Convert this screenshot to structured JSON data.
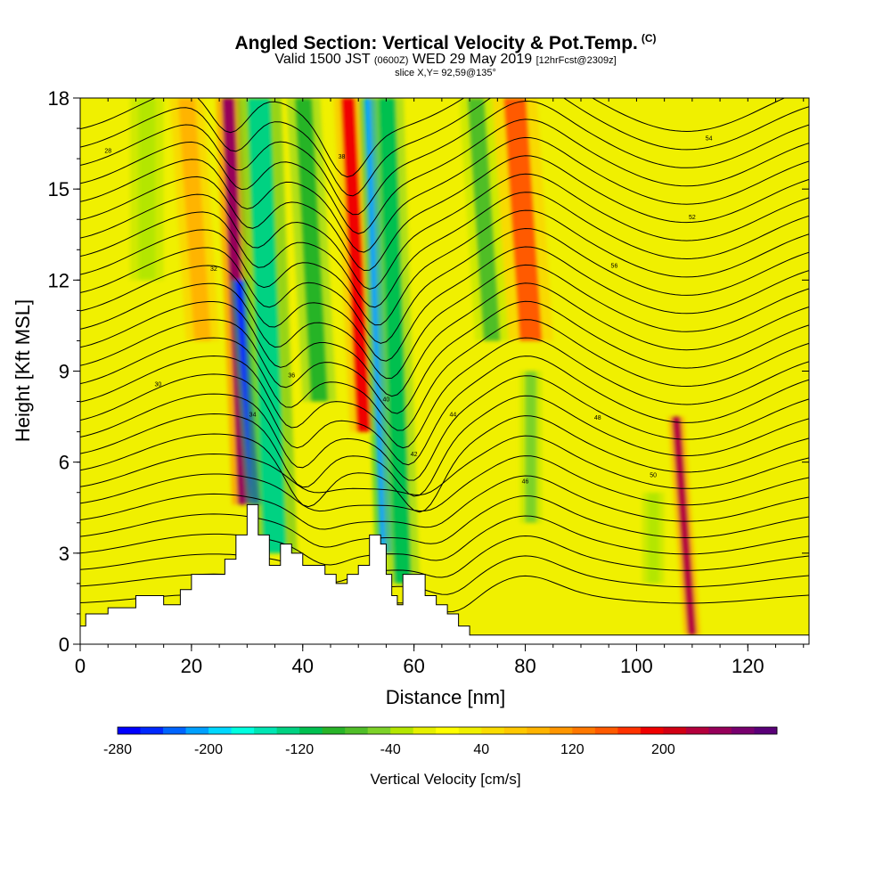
{
  "header": {
    "title": "Angled Section: Vertical Velocity & Pot.Temp.",
    "title_unit": "(C)",
    "valid_a": "Valid 1500 JST",
    "valid_utc": "(0600Z)",
    "valid_b": "WED 29 May 2019",
    "forecast": "[12hrFcst@2309z]",
    "slice": "slice X,Y= 92,59@135°"
  },
  "chart_data": {
    "type": "heatmap",
    "xlabel": "Distance [nm]",
    "ylabel": "Height [Kft MSL]",
    "xlim": [
      0,
      131
    ],
    "ylim": [
      0,
      18
    ],
    "x_ticks": [
      0,
      20,
      40,
      60,
      80,
      100,
      120
    ],
    "y_ticks": [
      0,
      3,
      6,
      9,
      12,
      15,
      18
    ],
    "grid": false,
    "background_value": 20,
    "velocity_features": [
      {
        "x": 29.5,
        "y_top": 18,
        "y_bottom": 4.6,
        "value": 240,
        "width": 2.2
      },
      {
        "x": 31.5,
        "y_top": 12,
        "y_bottom": 4.6,
        "value": -260,
        "width": 1.6
      },
      {
        "x": 35,
        "y_top": 18,
        "y_bottom": 3,
        "value": -130,
        "width": 4
      },
      {
        "x": 43,
        "y_top": 18,
        "y_bottom": 8,
        "value": -100,
        "width": 3
      },
      {
        "x": 51,
        "y_top": 18,
        "y_bottom": 7,
        "value": 190,
        "width": 2.5
      },
      {
        "x": 55,
        "y_top": 18,
        "y_bottom": 3,
        "value": -210,
        "width": 2
      },
      {
        "x": 58,
        "y_top": 18,
        "y_bottom": 2,
        "value": -120,
        "width": 3
      },
      {
        "x": 74,
        "y_top": 18,
        "y_bottom": 10,
        "value": -80,
        "width": 3
      },
      {
        "x": 81,
        "y_top": 18,
        "y_bottom": 10,
        "value": 150,
        "width": 4
      },
      {
        "x": 81,
        "y_top": 9,
        "y_bottom": 4,
        "value": -60,
        "width": 2
      },
      {
        "x": 103,
        "y_top": 5,
        "y_bottom": 2,
        "value": -40,
        "width": 2
      },
      {
        "x": 110,
        "y_top": 7.5,
        "y_bottom": 0.3,
        "value": 230,
        "width": 1.5
      },
      {
        "x": 12,
        "y_top": 18,
        "y_bottom": 12,
        "value": -30,
        "width": 3
      },
      {
        "x": 22,
        "y_top": 18,
        "y_bottom": 10,
        "value": 80,
        "width": 3
      }
    ],
    "terrain": {
      "x": [
        0,
        1,
        5,
        10,
        12,
        15,
        18,
        20,
        24,
        26,
        28,
        30,
        31,
        32,
        34,
        36,
        38,
        40,
        42,
        44,
        46,
        48,
        50,
        52,
        54,
        55,
        56,
        57,
        58,
        60,
        62,
        64,
        66,
        68,
        70,
        72,
        131
      ],
      "height": [
        0.6,
        1.0,
        1.2,
        1.6,
        1.6,
        1.3,
        1.8,
        2.3,
        2.3,
        2.8,
        3.6,
        4.6,
        4.6,
        3.6,
        2.6,
        3.3,
        3.0,
        2.6,
        2.6,
        2.3,
        2.0,
        2.3,
        2.6,
        3.6,
        3.3,
        2.3,
        1.6,
        1.3,
        2.3,
        2.3,
        1.6,
        1.3,
        1.0,
        0.6,
        0.3,
        0.3,
        0.3
      ]
    },
    "isentrope_labels": [
      "28",
      "30",
      "32",
      "34",
      "36",
      "38",
      "40",
      "42",
      "44",
      "46",
      "48",
      "50",
      "52",
      "54",
      "56"
    ]
  },
  "colorbar": {
    "label": "Vertical Velocity [cm/s]",
    "tick_labels": [
      "-280",
      "-200",
      "-120",
      "-40",
      "40",
      "120",
      "200"
    ],
    "tick_values": [
      -280,
      -200,
      -120,
      -40,
      40,
      120,
      200
    ],
    "colors": [
      "#0000ff",
      "#0028ff",
      "#0064ff",
      "#00a0ff",
      "#00d8ff",
      "#00ffe0",
      "#00e6b4",
      "#00d282",
      "#00c050",
      "#28b428",
      "#50be28",
      "#7dd228",
      "#b4e600",
      "#e6f000",
      "#ffff00",
      "#f0f000",
      "#fadc00",
      "#ffc800",
      "#ffb400",
      "#ff9600",
      "#ff7800",
      "#ff5a00",
      "#ff3200",
      "#f00000",
      "#d20014",
      "#b4003c",
      "#96005a",
      "#78006e",
      "#5a0078"
    ]
  }
}
